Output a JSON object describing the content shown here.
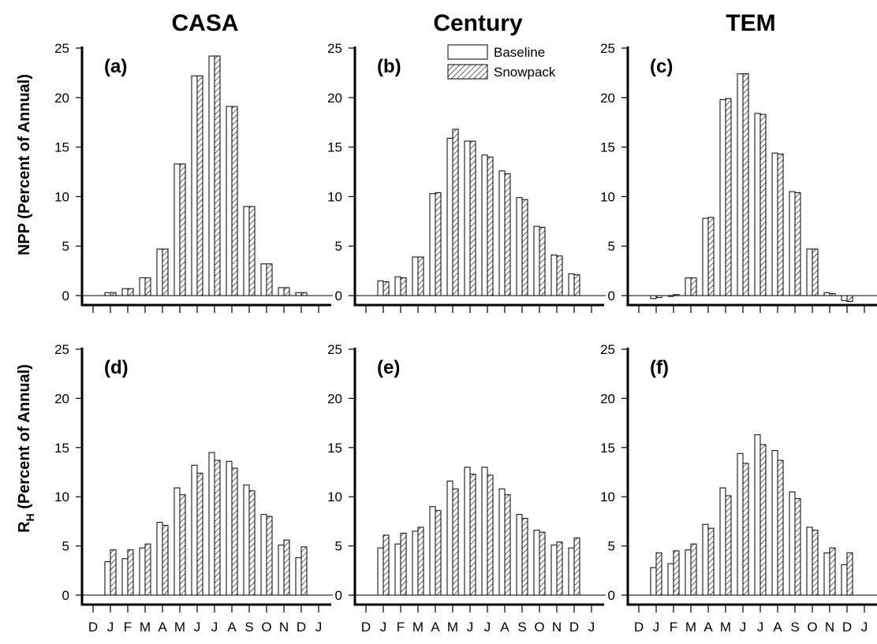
{
  "column_titles": [
    "CASA",
    "Century",
    "TEM"
  ],
  "ylabels": {
    "npp": "NPP (Percent of Annual)",
    "rh_main": "R",
    "rh_sub": "H",
    "rh_rest": " (Percent of Annual)"
  },
  "legend": {
    "baseline": "Baseline",
    "snowpack": "Snowpack"
  },
  "colors": {
    "bars_outline": "#000000",
    "baseline_fill": "#ffffff",
    "snowpack_hatch": "#000000"
  },
  "chart_data": [
    {
      "type": "bar",
      "panel": "(a)",
      "column": "CASA",
      "row": "NPP",
      "categories": [
        "J",
        "F",
        "M",
        "A",
        "M",
        "J",
        "J",
        "A",
        "S",
        "O",
        "N",
        "D"
      ],
      "ylim": [
        0,
        25
      ],
      "yticks": [
        0,
        5,
        10,
        15,
        20,
        25
      ],
      "series": [
        {
          "name": "Baseline",
          "values": [
            0.3,
            0.7,
            1.8,
            4.7,
            13.3,
            22.2,
            24.2,
            19.1,
            9.0,
            3.2,
            0.8,
            0.3
          ]
        },
        {
          "name": "Snowpack",
          "values": [
            0.3,
            0.7,
            1.8,
            4.7,
            13.3,
            22.2,
            24.2,
            19.1,
            9.0,
            3.2,
            0.8,
            0.3
          ]
        }
      ]
    },
    {
      "type": "bar",
      "panel": "(b)",
      "column": "Century",
      "row": "NPP",
      "categories": [
        "J",
        "F",
        "M",
        "A",
        "M",
        "J",
        "J",
        "A",
        "S",
        "O",
        "N",
        "D"
      ],
      "ylim": [
        0,
        25
      ],
      "yticks": [
        0,
        5,
        10,
        15,
        20,
        25
      ],
      "series": [
        {
          "name": "Baseline",
          "values": [
            1.5,
            1.9,
            3.9,
            10.3,
            15.9,
            15.6,
            14.2,
            12.6,
            9.9,
            7.0,
            4.1,
            2.2
          ]
        },
        {
          "name": "Snowpack",
          "values": [
            1.4,
            1.8,
            3.9,
            10.4,
            16.8,
            15.6,
            14.0,
            12.3,
            9.7,
            6.9,
            4.0,
            2.1
          ]
        }
      ]
    },
    {
      "type": "bar",
      "panel": "(c)",
      "column": "TEM",
      "row": "NPP",
      "categories": [
        "J",
        "F",
        "M",
        "A",
        "M",
        "J",
        "J",
        "A",
        "S",
        "O",
        "N",
        "D"
      ],
      "ylim": [
        0,
        25
      ],
      "yticks": [
        0,
        5,
        10,
        15,
        20,
        25
      ],
      "series": [
        {
          "name": "Baseline",
          "values": [
            -0.3,
            0.0,
            1.8,
            7.8,
            19.8,
            22.4,
            18.4,
            14.4,
            10.5,
            4.7,
            0.3,
            -0.5
          ]
        },
        {
          "name": "Snowpack",
          "values": [
            -0.2,
            0.1,
            1.8,
            7.9,
            19.9,
            22.4,
            18.3,
            14.3,
            10.4,
            4.7,
            0.2,
            -0.6
          ]
        }
      ]
    },
    {
      "type": "bar",
      "panel": "(d)",
      "column": "CASA",
      "row": "RH",
      "categories": [
        "J",
        "F",
        "M",
        "A",
        "M",
        "J",
        "J",
        "A",
        "S",
        "O",
        "N",
        "D"
      ],
      "xticks": [
        "D",
        "J",
        "F",
        "M",
        "A",
        "M",
        "J",
        "J",
        "A",
        "S",
        "O",
        "N",
        "D",
        "J"
      ],
      "ylim": [
        0,
        25
      ],
      "yticks": [
        0,
        5,
        10,
        15,
        20,
        25
      ],
      "series": [
        {
          "name": "Baseline",
          "values": [
            3.4,
            3.7,
            4.8,
            7.4,
            10.9,
            13.2,
            14.5,
            13.6,
            11.2,
            8.2,
            5.1,
            3.8
          ]
        },
        {
          "name": "Snowpack",
          "values": [
            4.6,
            4.6,
            5.2,
            7.1,
            10.2,
            12.4,
            13.7,
            12.9,
            10.6,
            8.0,
            5.6,
            4.9
          ]
        }
      ]
    },
    {
      "type": "bar",
      "panel": "(e)",
      "column": "Century",
      "row": "RH",
      "categories": [
        "J",
        "F",
        "M",
        "A",
        "M",
        "J",
        "J",
        "A",
        "S",
        "O",
        "N",
        "D"
      ],
      "xticks": [
        "D",
        "J",
        "F",
        "M",
        "A",
        "M",
        "J",
        "J",
        "A",
        "S",
        "O",
        "N",
        "D",
        "J"
      ],
      "ylim": [
        0,
        25
      ],
      "yticks": [
        0,
        5,
        10,
        15,
        20,
        25
      ],
      "series": [
        {
          "name": "Baseline",
          "values": [
            4.8,
            5.2,
            6.5,
            9.0,
            11.6,
            13.0,
            13.0,
            10.8,
            8.2,
            6.6,
            5.1,
            4.8
          ]
        },
        {
          "name": "Snowpack",
          "values": [
            6.1,
            6.3,
            6.9,
            8.6,
            10.8,
            12.3,
            12.2,
            10.2,
            7.8,
            6.4,
            5.4,
            5.8
          ]
        }
      ]
    },
    {
      "type": "bar",
      "panel": "(f)",
      "column": "TEM",
      "row": "RH",
      "categories": [
        "J",
        "F",
        "M",
        "A",
        "M",
        "J",
        "J",
        "A",
        "S",
        "O",
        "N",
        "D"
      ],
      "xticks": [
        "D",
        "J",
        "F",
        "M",
        "A",
        "M",
        "J",
        "J",
        "A",
        "S",
        "O",
        "N",
        "D",
        "J"
      ],
      "ylim": [
        0,
        25
      ],
      "yticks": [
        0,
        5,
        10,
        15,
        20,
        25
      ],
      "series": [
        {
          "name": "Baseline",
          "values": [
            2.8,
            3.2,
            4.6,
            7.2,
            10.9,
            14.4,
            16.3,
            14.7,
            10.5,
            6.9,
            4.3,
            3.1
          ]
        },
        {
          "name": "Snowpack",
          "values": [
            4.3,
            4.5,
            5.2,
            6.8,
            10.1,
            13.4,
            15.3,
            13.7,
            9.8,
            6.6,
            4.8,
            4.3
          ]
        }
      ]
    }
  ]
}
